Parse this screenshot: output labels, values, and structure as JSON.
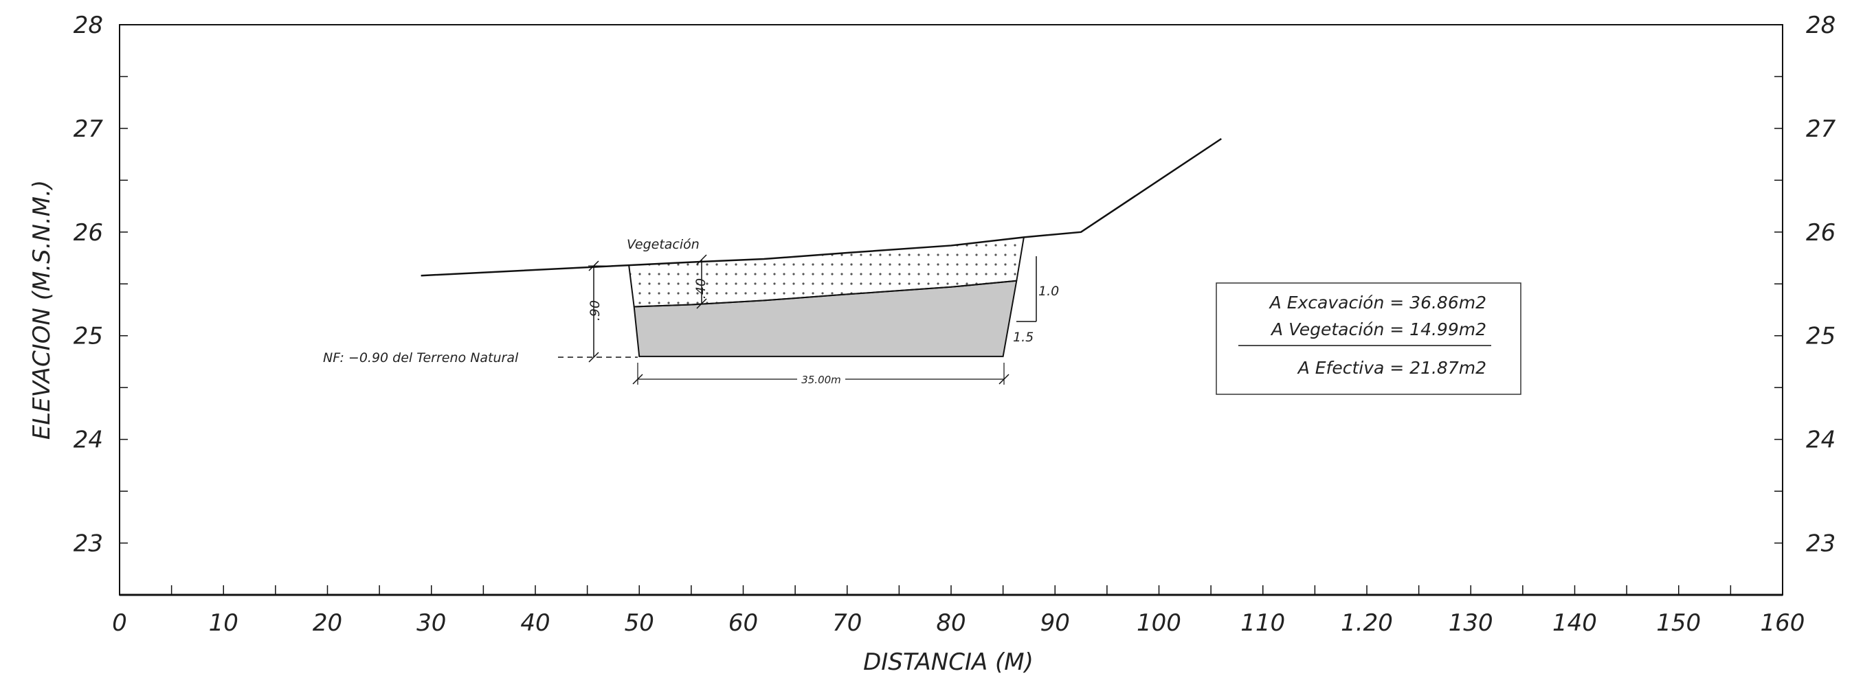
{
  "chart_data": {
    "type": "line",
    "xlabel": "DISTANCIA (M)",
    "ylabel": "ELEVACION (M.S.N.M.)",
    "xlim": [
      0,
      160
    ],
    "ylim": [
      22.5,
      28
    ],
    "x_tick_labels": [
      "0",
      "10",
      "20",
      "30",
      "40",
      "50",
      "60",
      "70",
      "80",
      "90",
      "100",
      "110",
      "1.20",
      "130",
      "140",
      "150",
      "160"
    ],
    "y_tick_labels_left": [
      "28",
      "27",
      "26",
      "25",
      "24",
      "23"
    ],
    "y_tick_labels_right": [
      "28",
      "27",
      "26",
      "25",
      "24",
      "23"
    ],
    "series": [
      {
        "values": [
          [
            29,
            25.58
          ],
          [
            49,
            25.68
          ],
          [
            55,
            25.71
          ],
          [
            62,
            25.74
          ],
          [
            70,
            25.8
          ],
          [
            80,
            25.87
          ],
          [
            87,
            25.95
          ],
          [
            92.5,
            26.0
          ],
          [
            106,
            26.9
          ]
        ]
      }
    ],
    "vegetation_bottom": [
      [
        49.5,
        25.28
      ],
      [
        55,
        25.3
      ],
      [
        62,
        25.34
      ],
      [
        70,
        25.4
      ],
      [
        80,
        25.47
      ],
      [
        86.3,
        25.53
      ]
    ],
    "excavation_bottom": [
      [
        50,
        24.8
      ],
      [
        85,
        24.8
      ]
    ],
    "nf_level": 24.8
  },
  "annotations": {
    "vegetation": "Vegetación",
    "dim_40": ".40",
    "dim_90": ".90",
    "slope_1_0": "1.0",
    "slope_1_5": "1.5",
    "nf": "NF: −0.90 del Terreno Natural",
    "width": "35.00m"
  },
  "legend": {
    "excavacion": "A Excavaciόn  =  36.86m2",
    "vegetacion": "A Vegetaciόn  =  14.99m2",
    "efectiva": "A Efectiva  =  21.87m2"
  },
  "colors": {
    "line": "#111111",
    "excavation_fill": "#c8c8c8",
    "vegetation_dots": "#555555"
  }
}
